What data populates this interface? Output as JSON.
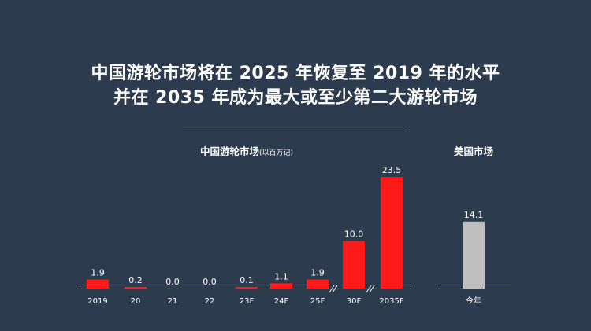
{
  "title": {
    "line1": "中国游轮市场将在 2025 年恢复至 2019 年的水平",
    "line2": "并在 2035 年成为最大或至少第二大游轮市场"
  },
  "colors": {
    "background": "#2d3b4f",
    "china_bar": "#ff1a1a",
    "us_bar": "#bfbfbf",
    "text": "#ffffff"
  },
  "chart_data": [
    {
      "type": "bar",
      "title": "中国游轮市场",
      "title_note": "(以百万记)",
      "categories": [
        "2019",
        "20",
        "21",
        "22",
        "23F",
        "24F",
        "25F",
        "30F",
        "2035F"
      ],
      "values": [
        1.9,
        0.2,
        0.0,
        0.0,
        0.1,
        1.1,
        1.9,
        10.0,
        23.5
      ],
      "value_labels": [
        "1.9",
        "0.2",
        "0.0",
        "0.0",
        "0.1",
        "1.1",
        "1.9",
        "10.0",
        "23.5"
      ],
      "axis_breaks_after": [
        "25F",
        "30F"
      ],
      "ylim": [
        0,
        23.5
      ],
      "grid": false,
      "color": "#ff1a1a"
    },
    {
      "type": "bar",
      "title": "美国市场",
      "categories": [
        "今年"
      ],
      "values": [
        14.1
      ],
      "value_labels": [
        "14.1"
      ],
      "ylim": [
        0,
        23.5
      ],
      "grid": false,
      "color": "#bfbfbf"
    }
  ]
}
